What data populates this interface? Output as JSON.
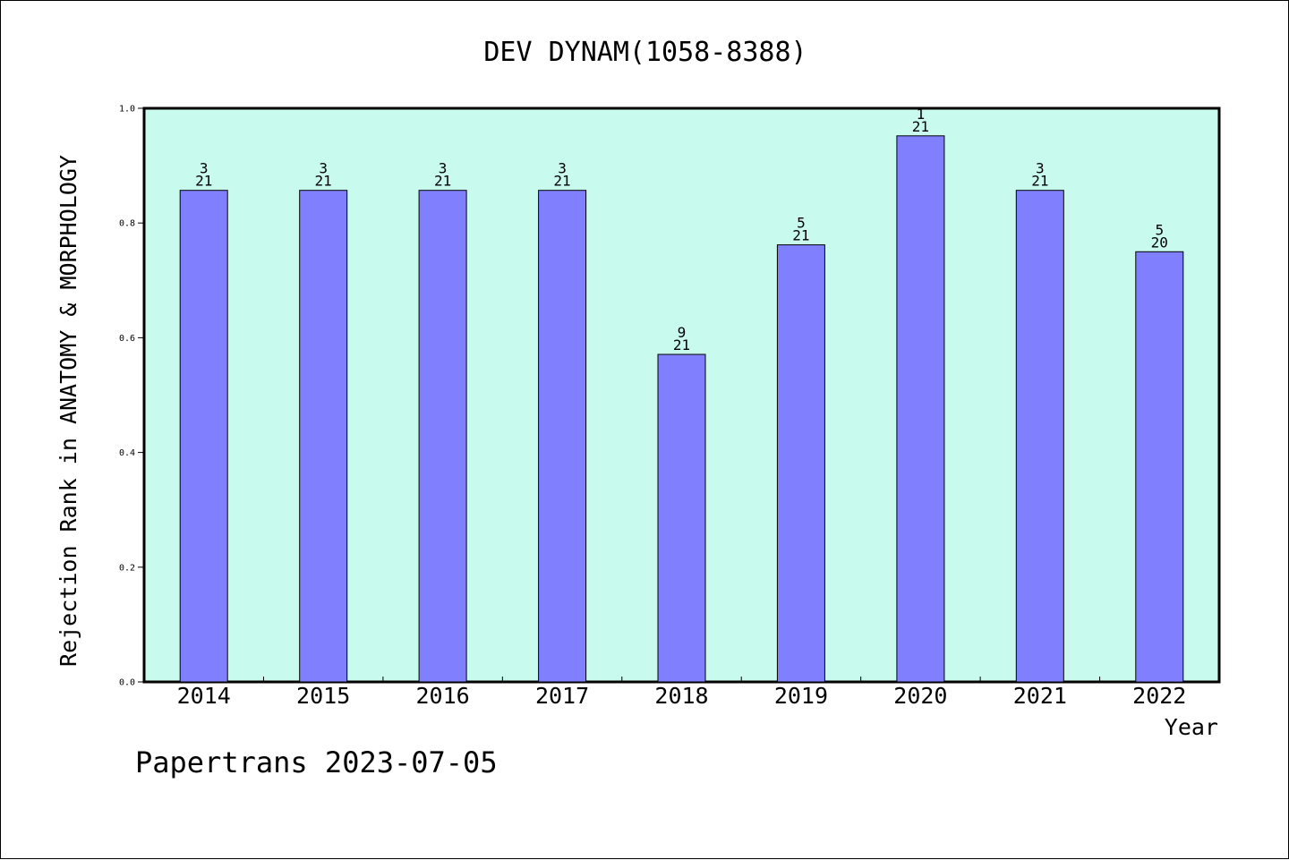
{
  "chart_data": {
    "type": "bar",
    "title": "DEV DYNAM(1058-8388)",
    "xlabel": "Year",
    "ylabel": "Rejection Rank in ANATOMY & MORPHOLOGY",
    "ylim": [
      0,
      1.0
    ],
    "yticks": [
      "0.0",
      "0.2",
      "0.4",
      "0.6",
      "0.8",
      "1.0"
    ],
    "grid": false,
    "legend": "none",
    "categories": [
      "2014",
      "2015",
      "2016",
      "2017",
      "2018",
      "2019",
      "2020",
      "2021",
      "2022"
    ],
    "values": [
      0.857,
      0.857,
      0.857,
      0.857,
      0.571,
      0.762,
      0.952,
      0.857,
      0.75
    ],
    "rank_labels": [
      {
        "rank": "3",
        "total": "21"
      },
      {
        "rank": "3",
        "total": "21"
      },
      {
        "rank": "3",
        "total": "21"
      },
      {
        "rank": "3",
        "total": "21"
      },
      {
        "rank": "9",
        "total": "21"
      },
      {
        "rank": "5",
        "total": "21"
      },
      {
        "rank": "1",
        "total": "21"
      },
      {
        "rank": "3",
        "total": "21"
      },
      {
        "rank": "5",
        "total": "20"
      }
    ],
    "colors": {
      "plot_background": "#c8fbee",
      "bar_fill": "#8080ff",
      "bar_stroke": "#000000"
    }
  },
  "footer": {
    "text": "Papertrans 2023-07-05"
  }
}
